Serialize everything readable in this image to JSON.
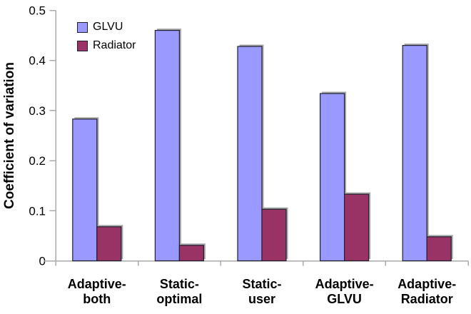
{
  "chart_data": {
    "type": "bar",
    "title": "",
    "xlabel": "",
    "ylabel": "Coefficient of variation",
    "categories": [
      "Adaptive-\nboth",
      "Static-\noptimal",
      "Static-\nuser",
      "Adaptive-\nGLVU",
      "Adaptive-\nRadiator"
    ],
    "series": [
      {
        "name": "GLVU",
        "color": "#9999ff",
        "values": [
          0.283,
          0.46,
          0.428,
          0.334,
          0.43
        ]
      },
      {
        "name": "Radiator",
        "color": "#993366",
        "values": [
          0.068,
          0.031,
          0.103,
          0.133,
          0.048
        ]
      }
    ],
    "ylim": [
      0,
      0.5
    ],
    "ytick_step": 0.1,
    "ytick_labels": [
      "0",
      "0.1",
      "0.2",
      "0.3",
      "0.4",
      "0.5"
    ],
    "grid": false,
    "legend_position": "top-left-inside",
    "colors": {
      "bar_border": "#202030",
      "shadow": "#a6a6a6",
      "axis": "#aaaaaa",
      "text": "#000000",
      "background": "#ffffff"
    }
  }
}
